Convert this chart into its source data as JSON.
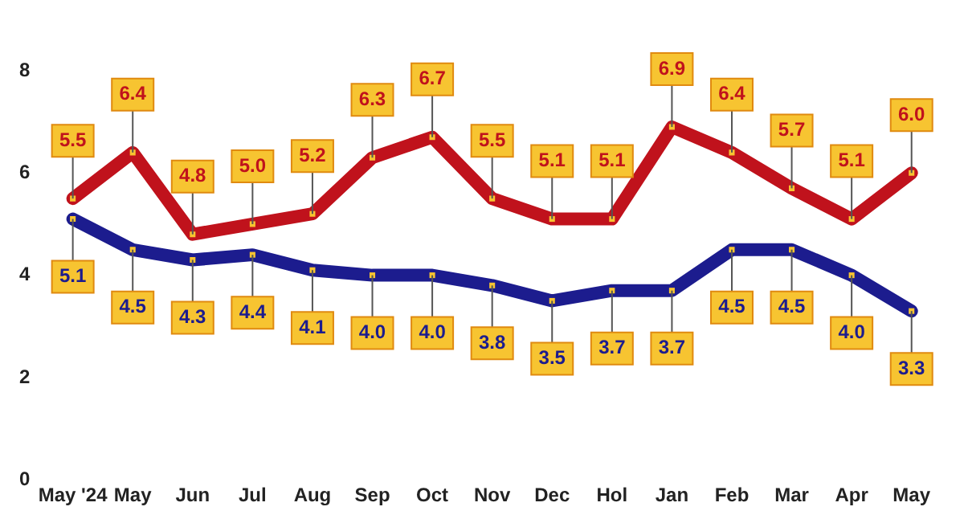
{
  "chart_data": {
    "type": "line",
    "categories": [
      "May '24",
      "May",
      "Jun",
      "Jul",
      "Aug",
      "Sep",
      "Oct",
      "Nov",
      "Dec",
      "Hol",
      "Jan",
      "Feb",
      "Mar",
      "Apr",
      "May"
    ],
    "series": [
      {
        "color": "#c0121c",
        "values": [
          5.5,
          6.4,
          4.8,
          5.0,
          5.2,
          6.3,
          6.7,
          5.5,
          5.1,
          5.1,
          6.9,
          6.4,
          5.7,
          5.1,
          6.0
        ],
        "value_labels": [
          "5.5",
          "6.4",
          "4.8",
          "5.0",
          "5.2",
          "6.3",
          "6.7",
          "5.5",
          "5.1",
          "5.1",
          "6.9",
          "6.4",
          "5.7",
          "5.1",
          "6.0"
        ]
      },
      {
        "color": "#1c1c8e",
        "values": [
          5.1,
          4.5,
          4.3,
          4.4,
          4.1,
          4.0,
          4.0,
          3.8,
          3.5,
          3.7,
          3.7,
          4.5,
          4.5,
          4.0,
          3.3
        ],
        "value_labels": [
          "5.1",
          "4.5",
          "4.3",
          "4.4",
          "4.1",
          "4.0",
          "4.0",
          "3.8",
          "3.5",
          "3.7",
          "3.7",
          "4.5",
          "4.5",
          "4.0",
          "3.3"
        ]
      }
    ],
    "ylim": [
      0,
      8
    ],
    "yticks": [
      0,
      2,
      4,
      6,
      8
    ],
    "grid": false,
    "legend": false,
    "marker": "square",
    "line_style": "solid"
  }
}
